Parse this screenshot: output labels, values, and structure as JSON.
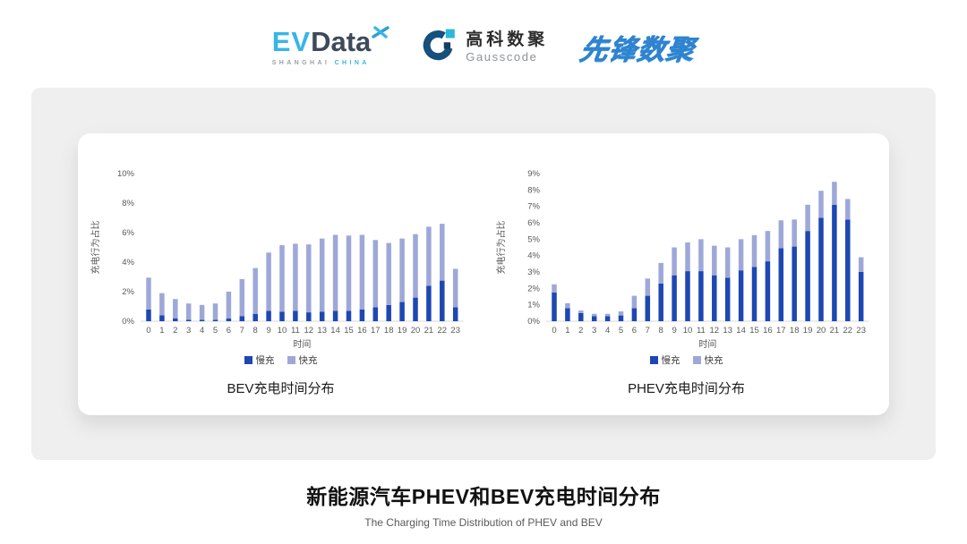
{
  "colors": {
    "slow": "#1d47b2",
    "fast": "#9ea8d8",
    "axis_line": "#d9d9d9",
    "tick_text": "#595959",
    "band_bg": "#efefef",
    "evdata_cyan": "#35b6e9",
    "evdata_slate": "#3d4a5c",
    "gausscode_navy": "#16507c",
    "gausscode_cyan": "#2cb8d8",
    "xianfeng_blue": "#2f83cf"
  },
  "header": {
    "evdata": {
      "ev": "EV",
      "data": "Data",
      "sub_left": "SHANGHAI ",
      "sub_right": "CHINA"
    },
    "gausscode": {
      "cn": "高科数聚",
      "en": "Gausscode"
    },
    "xianfeng": {
      "text": "先锋数聚"
    }
  },
  "footer": {
    "title": "新能源汽车PHEV和BEV充电时间分布",
    "subtitle": "The Charging Time Distribution of PHEV and BEV"
  },
  "chart_data": [
    {
      "type": "bar",
      "stacked": true,
      "title": "BEV充电时间分布",
      "xlabel": "时间",
      "ylabel": "充电行为占比",
      "ylim": [
        0,
        10
      ],
      "ytick_step": 2,
      "grid": false,
      "legend_position": "bottom",
      "categories": [
        0,
        1,
        2,
        3,
        4,
        5,
        6,
        7,
        8,
        9,
        10,
        11,
        12,
        13,
        14,
        15,
        16,
        17,
        18,
        19,
        20,
        21,
        22,
        23
      ],
      "series": [
        {
          "name": "慢充",
          "values": [
            0.8,
            0.4,
            0.2,
            0.1,
            0.1,
            0.1,
            0.18,
            0.35,
            0.5,
            0.7,
            0.65,
            0.7,
            0.6,
            0.65,
            0.7,
            0.7,
            0.8,
            0.95,
            1.1,
            1.3,
            1.6,
            2.4,
            2.75,
            0.95
          ]
        },
        {
          "name": "快充",
          "values": [
            2.15,
            1.5,
            1.3,
            1.1,
            1.0,
            1.1,
            1.82,
            2.5,
            3.1,
            3.95,
            4.5,
            4.55,
            4.6,
            4.95,
            5.15,
            5.1,
            5.05,
            4.55,
            4.2,
            4.3,
            4.3,
            4.0,
            3.85,
            2.6
          ]
        }
      ]
    },
    {
      "type": "bar",
      "stacked": true,
      "title": "PHEV充电时间分布",
      "xlabel": "时间",
      "ylabel": "充电行为占比",
      "ylim": [
        0,
        9
      ],
      "ytick_step": 1,
      "grid": false,
      "legend_position": "bottom",
      "categories": [
        0,
        1,
        2,
        3,
        4,
        5,
        6,
        7,
        8,
        9,
        10,
        11,
        12,
        13,
        14,
        15,
        16,
        17,
        18,
        19,
        20,
        21,
        22,
        23
      ],
      "series": [
        {
          "name": "慢充",
          "values": [
            1.75,
            0.8,
            0.5,
            0.3,
            0.3,
            0.35,
            0.8,
            1.55,
            2.3,
            2.8,
            3.05,
            3.05,
            2.8,
            2.65,
            3.1,
            3.3,
            3.65,
            4.45,
            4.55,
            5.5,
            6.3,
            7.1,
            6.2,
            3.0
          ]
        },
        {
          "name": "快充",
          "values": [
            0.5,
            0.3,
            0.15,
            0.15,
            0.15,
            0.25,
            0.75,
            1.05,
            1.25,
            1.7,
            1.75,
            1.95,
            1.8,
            1.85,
            1.9,
            1.95,
            1.85,
            1.7,
            1.65,
            1.6,
            1.65,
            1.4,
            1.25,
            0.9
          ]
        }
      ]
    }
  ]
}
